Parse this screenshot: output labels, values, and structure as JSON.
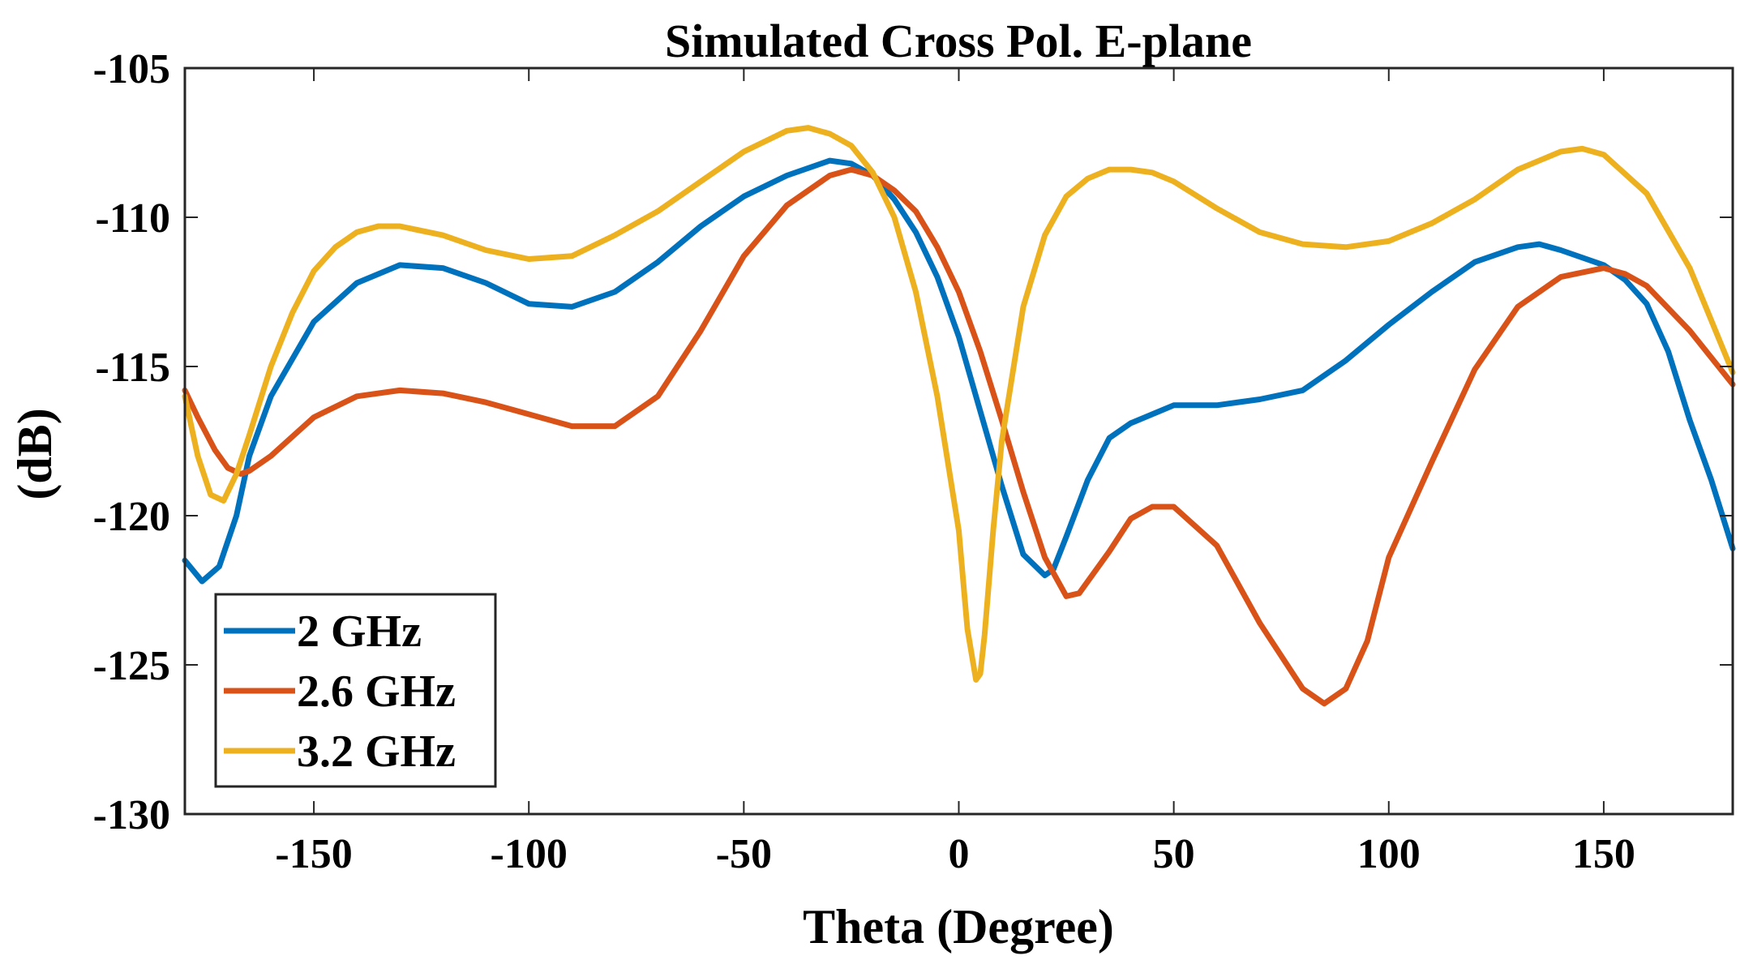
{
  "chart_data": {
    "type": "line",
    "title": "Simulated Cross Pol. E-plane",
    "xlabel": "Theta (Degree)",
    "ylabel": "(dB)",
    "xlim": [
      -180,
      180
    ],
    "ylim": [
      -130,
      -105
    ],
    "xticks": [
      -150,
      -100,
      -50,
      0,
      50,
      100,
      150
    ],
    "yticks": [
      -105,
      -110,
      -115,
      -120,
      -125,
      -130
    ],
    "legend_position": "bottom-left",
    "series": [
      {
        "name": "2 GHz",
        "color": "#0072BD",
        "x": [
          -180,
          -176,
          -172,
          -168,
          -165,
          -160,
          -150,
          -140,
          -130,
          -120,
          -110,
          -100,
          -90,
          -80,
          -70,
          -60,
          -50,
          -40,
          -30,
          -25,
          -20,
          -15,
          -10,
          -5,
          0,
          5,
          10,
          15,
          20,
          22,
          25,
          30,
          35,
          40,
          45,
          50,
          60,
          70,
          80,
          90,
          100,
          110,
          120,
          130,
          135,
          140,
          150,
          155,
          160,
          165,
          170,
          175,
          180
        ],
        "y": [
          -121.5,
          -122.2,
          -121.7,
          -120,
          -118,
          -116,
          -113.5,
          -112.2,
          -111.6,
          -111.7,
          -112.2,
          -112.9,
          -113,
          -112.5,
          -111.5,
          -110.3,
          -109.3,
          -108.6,
          -108.1,
          -108.2,
          -108.6,
          -109.4,
          -110.5,
          -112,
          -114,
          -116.5,
          -119,
          -121.3,
          -122,
          -121.8,
          -120.7,
          -118.8,
          -117.4,
          -116.9,
          -116.6,
          -116.3,
          -116.3,
          -116.1,
          -115.8,
          -114.8,
          -113.6,
          -112.5,
          -111.5,
          -111,
          -110.9,
          -111.1,
          -111.6,
          -112.1,
          -112.9,
          -114.5,
          -116.8,
          -118.8,
          -121.1
        ]
      },
      {
        "name": "2.6 GHz",
        "color": "#D95319",
        "x": [
          -180,
          -177,
          -173,
          -170,
          -167,
          -165,
          -160,
          -150,
          -140,
          -130,
          -120,
          -110,
          -100,
          -90,
          -80,
          -70,
          -60,
          -50,
          -40,
          -30,
          -25,
          -20,
          -15,
          -10,
          -5,
          0,
          5,
          10,
          15,
          20,
          25,
          28,
          35,
          40,
          45,
          50,
          60,
          70,
          80,
          85,
          90,
          95,
          100,
          110,
          120,
          130,
          140,
          150,
          155,
          160,
          170,
          180
        ],
        "y": [
          -115.8,
          -116.7,
          -117.8,
          -118.4,
          -118.6,
          -118.5,
          -118,
          -116.7,
          -116,
          -115.8,
          -115.9,
          -116.2,
          -116.6,
          -117,
          -117,
          -116,
          -113.8,
          -111.3,
          -109.6,
          -108.6,
          -108.4,
          -108.6,
          -109.1,
          -109.8,
          -111,
          -112.5,
          -114.5,
          -116.8,
          -119.2,
          -121.4,
          -122.7,
          -122.6,
          -121.2,
          -120.1,
          -119.7,
          -119.7,
          -121,
          -123.6,
          -125.8,
          -126.3,
          -125.8,
          -124.2,
          -121.4,
          -118.2,
          -115.1,
          -113,
          -112,
          -111.7,
          -111.9,
          -112.3,
          -113.8,
          -115.6
        ]
      },
      {
        "name": "3.2 GHz",
        "color": "#EDB120",
        "x": [
          -180,
          -177,
          -174,
          -171,
          -168,
          -165,
          -160,
          -155,
          -150,
          -145,
          -140,
          -135,
          -130,
          -120,
          -110,
          -100,
          -90,
          -80,
          -70,
          -60,
          -50,
          -40,
          -35,
          -30,
          -25,
          -20,
          -15,
          -10,
          -5,
          0,
          2,
          4,
          5,
          6,
          8,
          10,
          15,
          20,
          25,
          30,
          35,
          40,
          45,
          50,
          60,
          70,
          80,
          90,
          100,
          110,
          120,
          130,
          140,
          145,
          150,
          160,
          170,
          180
        ],
        "y": [
          -116,
          -118,
          -119.3,
          -119.5,
          -118.6,
          -117.3,
          -115,
          -113.2,
          -111.8,
          -111,
          -110.5,
          -110.3,
          -110.3,
          -110.6,
          -111.1,
          -111.4,
          -111.3,
          -110.6,
          -109.8,
          -108.8,
          -107.8,
          -107.1,
          -107,
          -107.2,
          -107.6,
          -108.5,
          -110,
          -112.5,
          -116,
          -120.5,
          -123.8,
          -125.5,
          -125.3,
          -124,
          -120.5,
          -117.5,
          -113,
          -110.6,
          -109.3,
          -108.7,
          -108.4,
          -108.4,
          -108.5,
          -108.8,
          -109.7,
          -110.5,
          -110.9,
          -111,
          -110.8,
          -110.2,
          -109.4,
          -108.4,
          -107.8,
          -107.7,
          -107.9,
          -109.2,
          -111.7,
          -115.2
        ]
      }
    ]
  }
}
